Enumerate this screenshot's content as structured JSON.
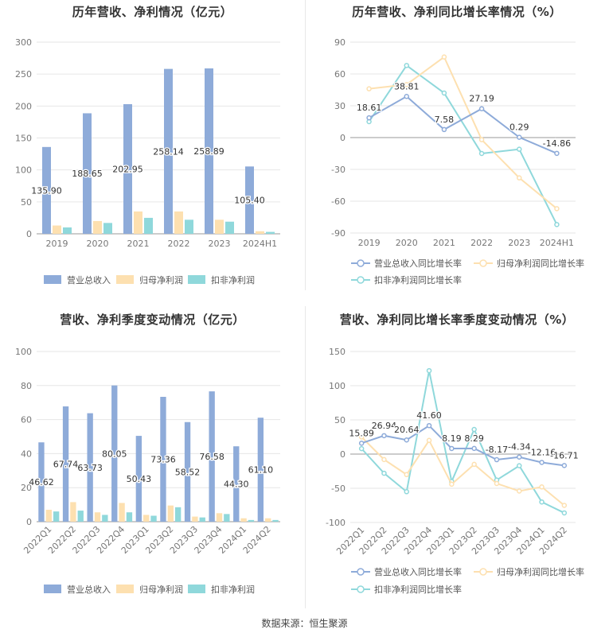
{
  "source": "数据来源：恒生聚源",
  "colors": {
    "revenue": "#8eabd9",
    "net": "#fde0b0",
    "deducted": "#8fd8db",
    "rev_growth": "#8eabd9",
    "net_growth": "#fde0b0",
    "ded_growth": "#8fd8db",
    "grid": "#e6e6e6",
    "axis_text": "#777777",
    "label_text": "#333333"
  },
  "chart_data": [
    {
      "type": "bar",
      "title": "历年营收、净利情况（亿元）",
      "categories": [
        "2019",
        "2020",
        "2021",
        "2022",
        "2023",
        "2024H1"
      ],
      "ylim": [
        0,
        300
      ],
      "yticks": [
        0,
        50,
        100,
        150,
        200,
        250,
        300
      ],
      "legend_position": "bottom",
      "series": [
        {
          "name": "营业总收入",
          "values": [
            135.9,
            188.65,
            202.95,
            258.14,
            258.89,
            105.4
          ],
          "labels": [
            "135.90",
            "188.65",
            "202.95",
            "258.14",
            "258.89",
            "105.40"
          ]
        },
        {
          "name": "归母净利润",
          "values": [
            13,
            20,
            35,
            35,
            22,
            4
          ]
        },
        {
          "name": "扣非净利润",
          "values": [
            10,
            17,
            25,
            22,
            19,
            3
          ]
        }
      ]
    },
    {
      "type": "line",
      "title": "历年营收、净利同比增长率情况（%）",
      "categories": [
        "2019",
        "2020",
        "2021",
        "2022",
        "2023",
        "2024H1"
      ],
      "ylim": [
        -90,
        90
      ],
      "yticks": [
        -90,
        -60,
        -30,
        0,
        30,
        60,
        90
      ],
      "legend_position": "bottom",
      "series": [
        {
          "name": "营业总收入同比增长率",
          "values": [
            18.61,
            38.81,
            7.58,
            27.19,
            0.29,
            -14.86
          ],
          "labels": [
            "18.61",
            "38.81",
            "7.58",
            "27.19",
            "0.29",
            "-14.86"
          ]
        },
        {
          "name": "归母净利润同比增长率",
          "values": [
            46,
            50,
            76,
            -2,
            -38,
            -67
          ]
        },
        {
          "name": "扣非净利润同比增长率",
          "values": [
            15,
            68,
            42,
            -15,
            -11,
            -82
          ]
        }
      ]
    },
    {
      "type": "bar",
      "title": "营收、净利季度变动情况（亿元）",
      "categories": [
        "2022Q1",
        "2022Q2",
        "2022Q3",
        "2022Q4",
        "2023Q1",
        "2023Q2",
        "2023Q3",
        "2023Q4",
        "2024Q1",
        "2024Q2"
      ],
      "ylim": [
        0,
        100
      ],
      "yticks": [
        0,
        20,
        40,
        60,
        80,
        100
      ],
      "legend_position": "bottom",
      "series": [
        {
          "name": "营业总收入",
          "values": [
            46.62,
            67.74,
            63.73,
            80.05,
            50.43,
            73.36,
            58.52,
            76.58,
            44.3,
            61.1
          ],
          "labels": [
            "46.62",
            "67.74",
            "63.73",
            "80.05",
            "50.43",
            "73.36",
            "58.52",
            "76.58",
            "44.30",
            "61.10"
          ]
        },
        {
          "name": "归母净利润",
          "values": [
            7,
            11.5,
            5.5,
            11,
            4,
            9.5,
            3,
            5,
            2,
            2
          ]
        },
        {
          "name": "扣非净利润",
          "values": [
            6,
            6.5,
            4,
            5.5,
            3.5,
            8.5,
            2.5,
            4.5,
            1,
            1
          ]
        }
      ]
    },
    {
      "type": "line",
      "title": "营收、净利同比增长率季度变动情况（%）",
      "categories": [
        "2022Q1",
        "2022Q2",
        "2022Q3",
        "2022Q4",
        "2023Q1",
        "2023Q2",
        "2023Q3",
        "2023Q4",
        "2024Q1",
        "2024Q2"
      ],
      "ylim": [
        -100,
        150
      ],
      "yticks": [
        -100,
        -50,
        0,
        50,
        100,
        150
      ],
      "legend_position": "bottom",
      "series": [
        {
          "name": "营业总收入同比增长率",
          "values": [
            15.89,
            26.94,
            20.64,
            41.6,
            8.19,
            8.29,
            -8.17,
            -4.34,
            -12.16,
            -16.71
          ],
          "labels": [
            "15.89",
            "26.94",
            "20.64",
            "41.60",
            "8.19",
            "8.29",
            "-8.17",
            "-4.34",
            "-12.16",
            "-16.71"
          ]
        },
        {
          "name": "归母净利润同比增长率",
          "values": [
            25,
            -8,
            -30,
            20,
            -44,
            -15,
            -43,
            -54,
            -48,
            -75
          ]
        },
        {
          "name": "扣非净利润同比增长率",
          "values": [
            8,
            -28,
            -55,
            122,
            -40,
            36,
            -38,
            -17,
            -70,
            -86
          ]
        }
      ]
    }
  ]
}
